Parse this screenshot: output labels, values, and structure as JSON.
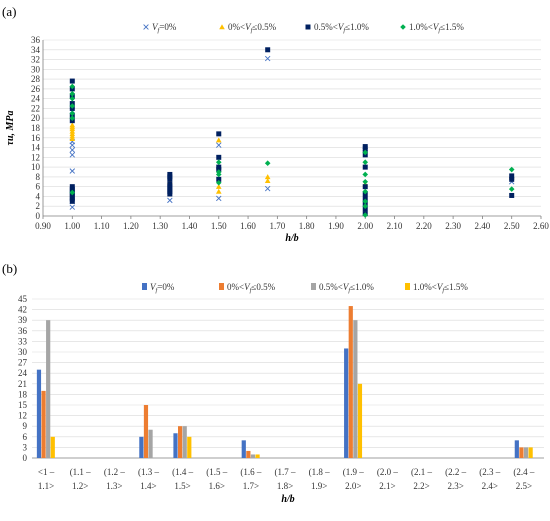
{
  "panels": {
    "a": "(a)",
    "b": "(b)"
  },
  "chart_data": [
    {
      "type": "scatter",
      "title": "",
      "xlabel": "h/b",
      "ylabel": "τu, MPa",
      "xlim": [
        0.9,
        2.6
      ],
      "ylim": [
        0,
        36
      ],
      "xticks": [
        "0.90",
        "1.00",
        "1.10",
        "1.20",
        "1.30",
        "1.40",
        "1.50",
        "1.60",
        "1.70",
        "1.80",
        "1.90",
        "2.00",
        "2.10",
        "2.20",
        "2.30",
        "2.40",
        "2.50",
        "2.60"
      ],
      "yticks": [
        "0",
        "2",
        "4",
        "6",
        "8",
        "10",
        "12",
        "14",
        "16",
        "18",
        "20",
        "22",
        "24",
        "26",
        "28",
        "30",
        "32",
        "34",
        "36"
      ],
      "grid": "horizontal",
      "legend": "top",
      "series": [
        {
          "name": "Vf=0%",
          "marker": "x",
          "color": "#4472c4",
          "points": [
            [
              1.0,
              1.8
            ],
            [
              1.0,
              3.0
            ],
            [
              1.0,
              9.2
            ],
            [
              1.0,
              12.5
            ],
            [
              1.0,
              13.5
            ],
            [
              1.0,
              14.5
            ],
            [
              1.0,
              15.2
            ],
            [
              1.0,
              21.5
            ],
            [
              1.333,
              3.2
            ],
            [
              1.5,
              3.6
            ],
            [
              1.5,
              14.5
            ],
            [
              1.667,
              5.6
            ],
            [
              1.667,
              32.2
            ],
            [
              2.0,
              13.8
            ],
            [
              2.5,
              7.0
            ]
          ]
        },
        {
          "name": "0%<Vf≤0.5%",
          "marker": "triangle",
          "color": "#ffc000",
          "points": [
            [
              1.0,
              15.8
            ],
            [
              1.0,
              16.3
            ],
            [
              1.0,
              16.8
            ],
            [
              1.0,
              17.3
            ],
            [
              1.0,
              17.8
            ],
            [
              1.0,
              18.2
            ],
            [
              1.0,
              18.6
            ],
            [
              1.333,
              7.0
            ],
            [
              1.5,
              5.0
            ],
            [
              1.5,
              6.0
            ],
            [
              1.5,
              15.5
            ],
            [
              1.667,
              7.2
            ],
            [
              1.667,
              8.0
            ],
            [
              2.0,
              6.5
            ],
            [
              2.5,
              8.0
            ]
          ]
        },
        {
          "name": "0.5%<Vf≤1.0%",
          "marker": "square",
          "color": "#002060",
          "points": [
            [
              1.0,
              3.0
            ],
            [
              1.0,
              3.5
            ],
            [
              1.0,
              4.0
            ],
            [
              1.0,
              4.5
            ],
            [
              1.0,
              5.0
            ],
            [
              1.0,
              5.5
            ],
            [
              1.0,
              6.0
            ],
            [
              1.0,
              19.5
            ],
            [
              1.0,
              20.5
            ],
            [
              1.0,
              22.0
            ],
            [
              1.0,
              23.0
            ],
            [
              1.0,
              24.5
            ],
            [
              1.0,
              26.0
            ],
            [
              1.0,
              27.6
            ],
            [
              1.333,
              4.5
            ],
            [
              1.333,
              5.0
            ],
            [
              1.333,
              5.5
            ],
            [
              1.333,
              6.0
            ],
            [
              1.333,
              6.5
            ],
            [
              1.333,
              7.5
            ],
            [
              1.333,
              8.0
            ],
            [
              1.333,
              8.5
            ],
            [
              1.5,
              7.5
            ],
            [
              1.5,
              9.5
            ],
            [
              1.5,
              10.0
            ],
            [
              1.5,
              12.0
            ],
            [
              1.5,
              16.8
            ],
            [
              1.667,
              34.0
            ],
            [
              2.0,
              0.5
            ],
            [
              2.0,
              1.5
            ],
            [
              2.0,
              2.5
            ],
            [
              2.0,
              3.5
            ],
            [
              2.0,
              4.5
            ],
            [
              2.0,
              6.0
            ],
            [
              2.0,
              10.0
            ],
            [
              2.0,
              12.5
            ],
            [
              2.0,
              13.5
            ],
            [
              2.0,
              14.2
            ],
            [
              2.5,
              4.2
            ],
            [
              2.5,
              7.5
            ],
            [
              2.5,
              8.2
            ]
          ]
        },
        {
          "name": "1.0%<Vf≤1.5%",
          "marker": "diamond",
          "color": "#00b050",
          "points": [
            [
              1.0,
              4.8
            ],
            [
              1.0,
              20.0
            ],
            [
              1.0,
              21.0
            ],
            [
              1.0,
              22.5
            ],
            [
              1.0,
              24.0
            ],
            [
              1.0,
              25.0
            ],
            [
              1.0,
              26.5
            ],
            [
              1.5,
              6.8
            ],
            [
              1.5,
              8.5
            ],
            [
              1.5,
              9.0
            ],
            [
              1.5,
              11.0
            ],
            [
              1.667,
              10.8
            ],
            [
              2.0,
              0.2
            ],
            [
              2.0,
              2.0
            ],
            [
              2.0,
              3.0
            ],
            [
              2.0,
              5.0
            ],
            [
              2.0,
              7.0
            ],
            [
              2.0,
              8.5
            ],
            [
              2.0,
              11.0
            ],
            [
              2.0,
              13.0
            ],
            [
              2.5,
              5.5
            ],
            [
              2.5,
              9.5
            ]
          ]
        }
      ]
    },
    {
      "type": "bar",
      "title": "",
      "xlabel": "h/b",
      "ylabel": "",
      "ylim": [
        0,
        45
      ],
      "yticks": [
        "0",
        "3",
        "6",
        "9",
        "12",
        "15",
        "18",
        "21",
        "24",
        "27",
        "30",
        "33",
        "36",
        "39",
        "42",
        "45"
      ],
      "grid": "horizontal",
      "legend": "top",
      "categories": [
        [
          "<1 –",
          "1.1>"
        ],
        [
          "(1.1 –",
          "1.2>"
        ],
        [
          "(1.2 –",
          "1.3>"
        ],
        [
          "(1.3 –",
          "1.4>"
        ],
        [
          "(1.4 –",
          "1.5>"
        ],
        [
          "(1.5 –",
          "1.6>"
        ],
        [
          "(1.6 –",
          "1.7>"
        ],
        [
          "(1.7 –",
          "1.8>"
        ],
        [
          "(1.8 –",
          "1.9>"
        ],
        [
          "(1.9 –",
          "2.0>"
        ],
        [
          "(2.0 –",
          "2.1>"
        ],
        [
          "(2.1 –",
          "2.2>"
        ],
        [
          "(2.2 –",
          "2.3>"
        ],
        [
          "(2.3 –",
          "2.4>"
        ],
        [
          "(2.4 –",
          "2.5>"
        ]
      ],
      "series": [
        {
          "name": "Vf=0%",
          "color": "#4472c4",
          "values": [
            25,
            0,
            0,
            6,
            7,
            0,
            5,
            0,
            0,
            31,
            0,
            0,
            0,
            0,
            5
          ]
        },
        {
          "name": "0%<Vf≤0.5%",
          "color": "#ed7d31",
          "values": [
            19,
            0,
            0,
            15,
            9,
            0,
            2,
            0,
            0,
            43,
            0,
            0,
            0,
            0,
            3
          ]
        },
        {
          "name": "0.5%<Vf≤1.0%",
          "color": "#a5a5a5",
          "values": [
            39,
            0,
            0,
            8,
            9,
            0,
            1,
            0,
            0,
            39,
            0,
            0,
            0,
            0,
            3
          ]
        },
        {
          "name": "1.0%<Vf≤1.5%",
          "color": "#ffc000",
          "values": [
            6,
            0,
            0,
            0,
            6,
            0,
            1,
            0,
            0,
            21,
            0,
            0,
            0,
            0,
            3
          ]
        }
      ]
    }
  ]
}
